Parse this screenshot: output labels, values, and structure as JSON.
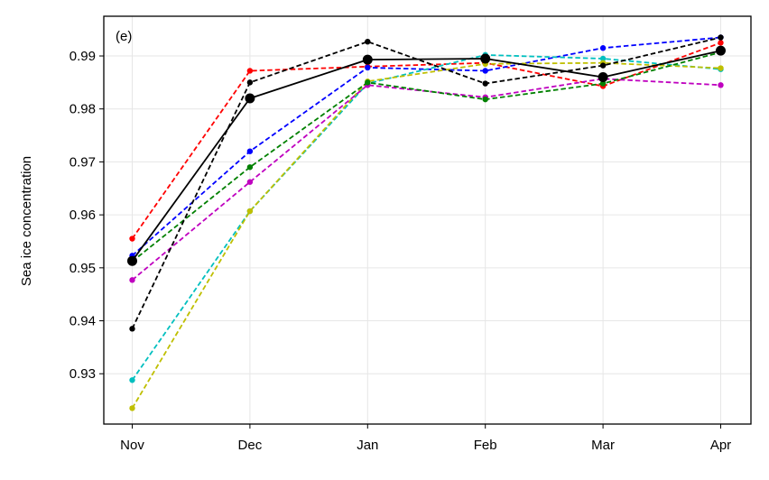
{
  "chart_data": {
    "type": "line",
    "panel_label": "(e)",
    "xlabel": "",
    "ylabel": "Sea ice concentration",
    "categories": [
      "Nov",
      "Dec",
      "Jan",
      "Feb",
      "Mar",
      "Apr"
    ],
    "ylim": [
      0.9205,
      0.9975
    ],
    "yticks": [
      "0.93",
      "0.94",
      "0.95",
      "0.96",
      "0.97",
      "0.98",
      "0.99"
    ],
    "grid": true,
    "legend": "none",
    "series": [
      {
        "color": "#ff0000",
        "style": "dashed",
        "marker": "small",
        "values": [
          0.9555,
          0.9872,
          0.988,
          0.9887,
          0.9843,
          0.9925
        ]
      },
      {
        "color": "#0000ff",
        "style": "dashed",
        "marker": "small",
        "values": [
          0.9523,
          0.972,
          0.9878,
          0.9872,
          0.9915,
          0.9935
        ]
      },
      {
        "color": "#00bfbf",
        "style": "dashed",
        "marker": "small",
        "values": [
          0.9288,
          0.9607,
          0.9848,
          0.9902,
          0.9895,
          0.9875
        ]
      },
      {
        "color": "#bfbf00",
        "style": "dashed",
        "marker": "small",
        "values": [
          0.9235,
          0.9607,
          0.9852,
          0.9885,
          0.9887,
          0.9877
        ]
      },
      {
        "color": "#bf00bf",
        "style": "dashed",
        "marker": "small",
        "values": [
          0.9477,
          0.9662,
          0.9845,
          0.9822,
          0.9857,
          0.9845
        ]
      },
      {
        "color": "#008000",
        "style": "dashed",
        "marker": "small",
        "values": [
          0.9512,
          0.969,
          0.985,
          0.9818,
          0.9848,
          0.9907
        ]
      },
      {
        "color": "#000000",
        "style": "dashed",
        "marker": "small",
        "values": [
          0.9385,
          0.985,
          0.9927,
          0.9848,
          0.9882,
          0.9935
        ]
      },
      {
        "color": "#000000",
        "style": "solid",
        "marker": "large",
        "values": [
          0.9513,
          0.982,
          0.9893,
          0.9895,
          0.986,
          0.991
        ]
      }
    ]
  }
}
